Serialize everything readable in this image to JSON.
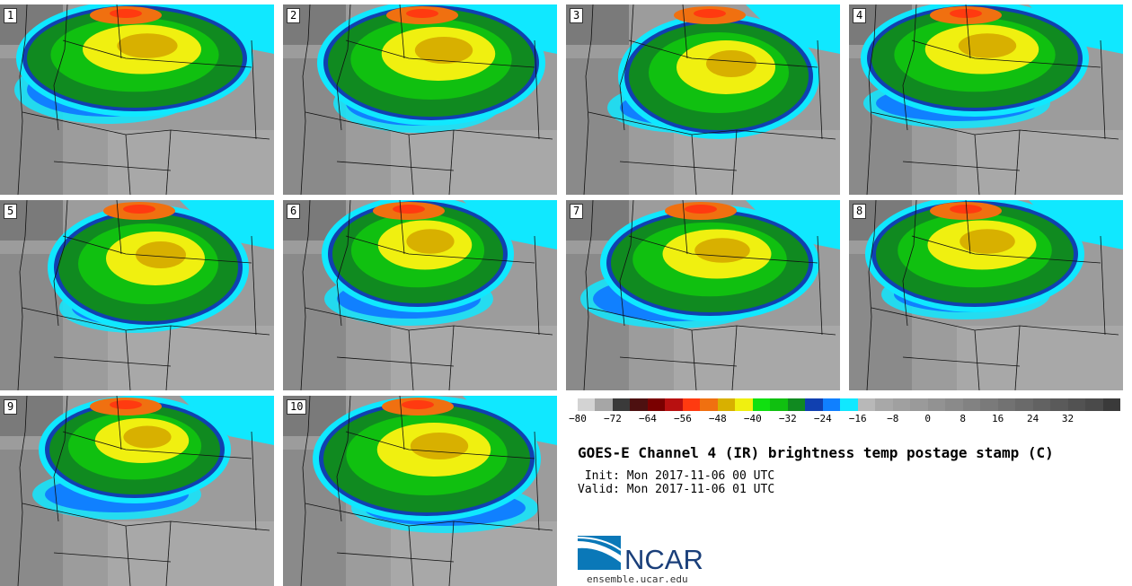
{
  "panels": [
    {
      "label": "1"
    },
    {
      "label": "2"
    },
    {
      "label": "3"
    },
    {
      "label": "4"
    },
    {
      "label": "5"
    },
    {
      "label": "6"
    },
    {
      "label": "7"
    },
    {
      "label": "8"
    },
    {
      "label": "9"
    },
    {
      "label": "10"
    }
  ],
  "colorbar": {
    "colors": [
      "#d3d3d3",
      "#a6a6a6",
      "#3a3a3a",
      "#4d1010",
      "#7a0000",
      "#b81010",
      "#ff3a10",
      "#f07010",
      "#d8b000",
      "#f0f010",
      "#10e010",
      "#10c010",
      "#108a20",
      "#1040b0",
      "#1080ff",
      "#10e8ff",
      "#b8b8b8",
      "#a8a8a8",
      "#a0a0a0",
      "#9a9a9a",
      "#929292",
      "#8a8a8a",
      "#828282",
      "#7a7a7a",
      "#727272",
      "#6a6a6a",
      "#626262",
      "#5a5a5a",
      "#525252",
      "#4a4a4a",
      "#3a3a3a"
    ],
    "ticks": [
      "−80",
      "−72",
      "−64",
      "−56",
      "−48",
      "−40",
      "−32",
      "−24",
      "−16",
      "−8",
      "0",
      "8",
      "16",
      "24",
      "32"
    ]
  },
  "title": "GOES-E Channel 4 (IR) brightness temp postage stamp (C)",
  "init_line": " Init: Mon 2017-11-06 00 UTC",
  "valid_line": "Valid: Mon 2017-11-06 01 UTC",
  "logo_text": "NCAR",
  "url": "ensemble.ucar.edu"
}
